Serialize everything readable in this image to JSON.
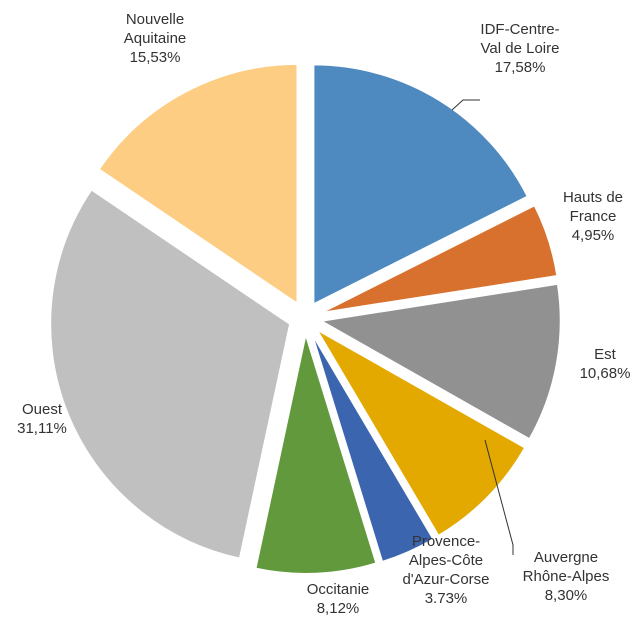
{
  "chart_data": {
    "type": "pie",
    "categories": [
      "IDF-Centre-\nVal de Loire",
      "Hauts de\nFrance",
      "Est",
      "Auvergne\nRhône-Alpes",
      "Provence-\nAlpes-Côte\nd'Azur-Corse",
      "Occitanie",
      "Ouest",
      "Nouvelle\nAquitaine"
    ],
    "values": [
      17.58,
      4.95,
      10.68,
      8.3,
      3.73,
      8.12,
      31.11,
      15.53
    ],
    "value_labels": [
      "17,58%",
      "4,95%",
      "10,68%",
      "8,30%",
      "3.73%",
      "8,12%",
      "31,11%",
      "15,53%"
    ],
    "colors": [
      "#4e8ac0",
      "#d8702e",
      "#919191",
      "#e3a900",
      "#3b65ae",
      "#62993d",
      "#c0c0c0",
      "#fdcd83"
    ]
  }
}
